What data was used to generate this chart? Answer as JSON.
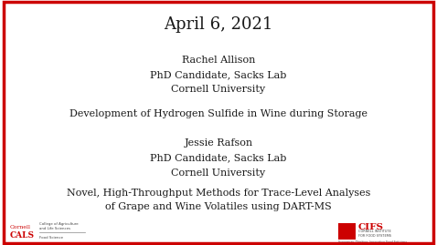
{
  "background_color": "#ffffff",
  "border_color": "#cc0000",
  "border_linewidth": 2.5,
  "title": "April 6, 2021",
  "title_fontsize": 13,
  "title_color": "#1a1a1a",
  "presenter1_name": "Rachel Allison",
  "presenter1_role": "PhD Candidate, Sacks Lab",
  "presenter1_affil": "Cornell University",
  "presenter1_talk": "Development of Hydrogen Sulfide in Wine during Storage",
  "presenter2_name": "Jessie Rafson",
  "presenter2_role": "PhD Candidate, Sacks Lab",
  "presenter2_affil": "Cornell University",
  "presenter2_talk": "Novel, High-Throughput Methods for Trace-Level Analyses\nof Grape and Wine Volatiles using DART-MS",
  "name_fontsize": 8,
  "role_fontsize": 8,
  "talk_fontsize": 8,
  "text_color": "#1a1a1a",
  "cornell_red": "#cc0000"
}
